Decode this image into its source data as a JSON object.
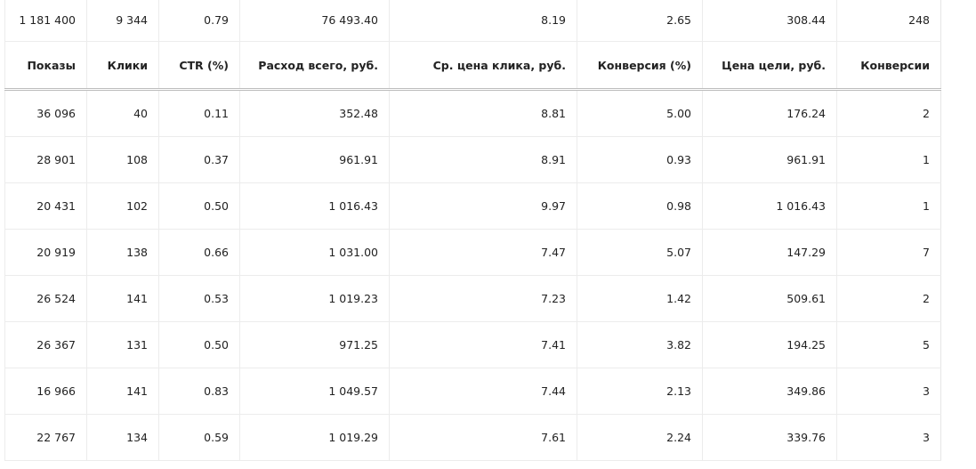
{
  "totals": [
    "1 181 400",
    "9 344",
    "0.79",
    "76 493.40",
    "8.19",
    "2.65",
    "308.44",
    "248"
  ],
  "columns": [
    "Показы",
    "Клики",
    "CTR (%)",
    "Расход всего, руб.",
    "Ср. цена клика, руб.",
    "Конверсия (%)",
    "Цена цели, руб.",
    "Конверсии"
  ],
  "rows": [
    [
      "36 096",
      "40",
      "0.11",
      "352.48",
      "8.81",
      "5.00",
      "176.24",
      "2"
    ],
    [
      "28 901",
      "108",
      "0.37",
      "961.91",
      "8.91",
      "0.93",
      "961.91",
      "1"
    ],
    [
      "20 431",
      "102",
      "0.50",
      "1 016.43",
      "9.97",
      "0.98",
      "1 016.43",
      "1"
    ],
    [
      "20 919",
      "138",
      "0.66",
      "1 031.00",
      "7.47",
      "5.07",
      "147.29",
      "7"
    ],
    [
      "26 524",
      "141",
      "0.53",
      "1 019.23",
      "7.23",
      "1.42",
      "509.61",
      "2"
    ],
    [
      "26 367",
      "131",
      "0.50",
      "971.25",
      "7.41",
      "3.82",
      "194.25",
      "5"
    ],
    [
      "16 966",
      "141",
      "0.83",
      "1 049.57",
      "7.44",
      "2.13",
      "349.86",
      "3"
    ],
    [
      "22 767",
      "134",
      "0.59",
      "1 019.29",
      "7.61",
      "2.24",
      "339.76",
      "3"
    ]
  ]
}
